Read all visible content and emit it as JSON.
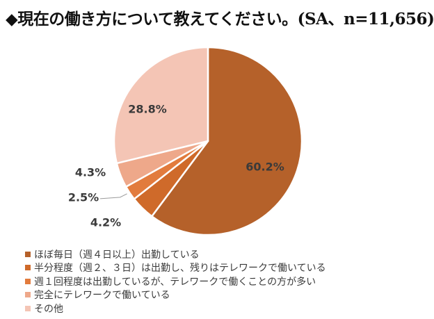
{
  "title": "◆現在の働き方について教えてください。(SA、n=11,656)",
  "chart_data": {
    "type": "pie",
    "title": "◆現在の働き方について教えてください。(SA、n=11,656)",
    "slices": [
      {
        "label": "ほぼ毎日（週４日以上）出勤している",
        "value": 60.2,
        "display": "60.2%",
        "color": "#b5612a"
      },
      {
        "label": "半分程度（週２、３日）は出勤し、残りはテレワークで働いている",
        "value": 4.2,
        "display": "4.2%",
        "color": "#cf6a2a"
      },
      {
        "label": "週１回程度は出勤しているが、テレワークで働くことの方が多い",
        "value": 2.5,
        "display": "2.5%",
        "color": "#e27b3d"
      },
      {
        "label": "完全にテレワークで働いている",
        "value": 4.3,
        "display": "4.3%",
        "color": "#eea88a"
      },
      {
        "label": "その他",
        "value": 28.8,
        "display": "28.8%",
        "color": "#f4c5b5"
      }
    ],
    "start_angle_deg": 0,
    "direction": "clockwise",
    "legend_position": "bottom-left"
  }
}
